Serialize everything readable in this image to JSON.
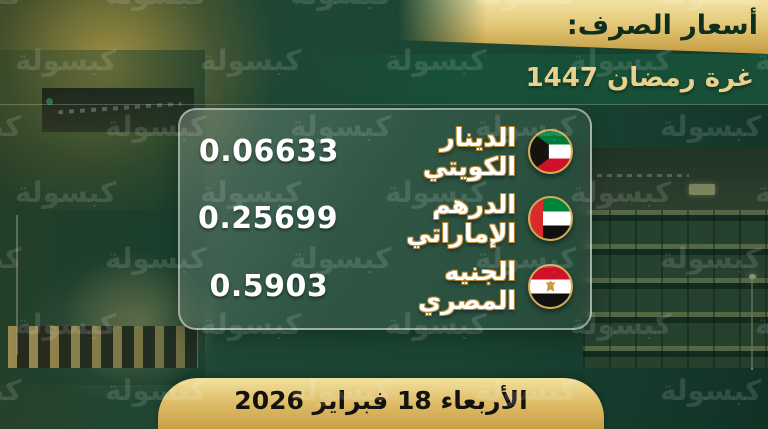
{
  "header": {
    "title": "أسعار الصرف:",
    "subtitle": "غرة رمضان 1447"
  },
  "card": {
    "rates": [
      {
        "currency": "الدينار الكويتي",
        "value": "0.06633",
        "flag_icon": "kuwait-flag"
      },
      {
        "currency": "الدرهم الإماراتي",
        "value": "0.25699",
        "flag_icon": "uae-flag"
      },
      {
        "currency": "الجنيه المصري",
        "value": "0.5903",
        "flag_icon": "egypt-flag"
      }
    ]
  },
  "footer": {
    "date": "الأربعاء 18 فبراير 2026"
  },
  "watermark": {
    "text": "كبسولة"
  },
  "colors": {
    "gold_band": "#e3c878",
    "dark_green": "#1a4533",
    "header_text": "#0f2e1d",
    "subtitle_gold": "#e9d08c",
    "value_text": "#ffffff",
    "date_text": "#14120e",
    "flag_ring": "#d2ab55"
  }
}
